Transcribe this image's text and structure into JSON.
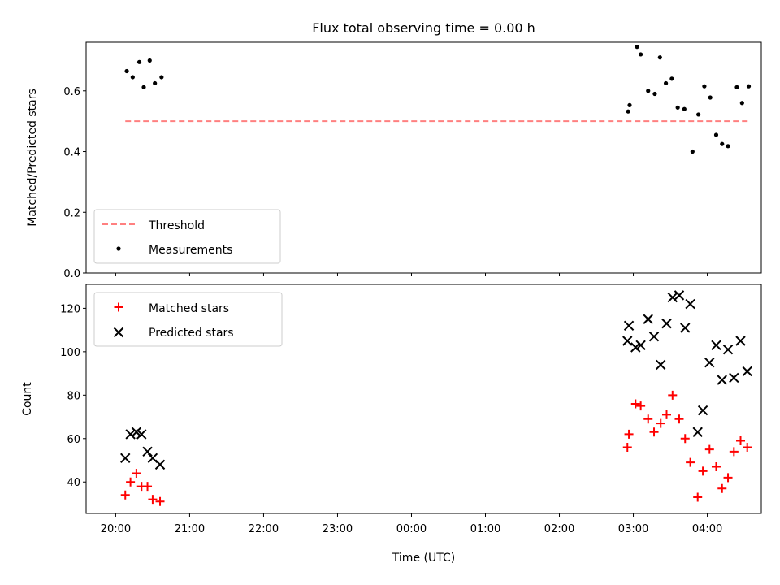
{
  "title": "Flux total observing time = 0.00 h",
  "chart_data": [
    {
      "type": "scatter",
      "ylabel": "Matched/Predicted stars",
      "xlabel": "",
      "ylim": [
        0,
        0.76
      ],
      "yticks": [
        0.0,
        0.2,
        0.4,
        0.6
      ],
      "ytick_labels": [
        "0.0",
        "0.2",
        "0.4",
        "0.6"
      ],
      "xlim": [
        19.6,
        28.73
      ],
      "grid": false,
      "legend_position": "lower-left",
      "threshold": {
        "name": "Threshold",
        "value": 0.5,
        "x_range": [
          20.13,
          28.57
        ],
        "color": "#ff8080"
      },
      "series": [
        {
          "name": "Measurements",
          "color": "#000000",
          "marker": "dot",
          "x": [
            20.15,
            20.23,
            20.32,
            20.38,
            20.46,
            20.53,
            20.62,
            26.93,
            26.95,
            27.05,
            27.1,
            27.2,
            27.29,
            27.36,
            27.44,
            27.52,
            27.6,
            27.69,
            27.8,
            27.88,
            27.96,
            28.04,
            28.12,
            28.2,
            28.28,
            28.4,
            28.47,
            28.56
          ],
          "y": [
            0.665,
            0.645,
            0.695,
            0.612,
            0.7,
            0.625,
            0.645,
            0.532,
            0.553,
            0.745,
            0.72,
            0.6,
            0.59,
            0.71,
            0.625,
            0.64,
            0.545,
            0.54,
            0.4,
            0.522,
            0.615,
            0.578,
            0.455,
            0.425,
            0.418,
            0.612,
            0.56,
            0.615
          ]
        }
      ]
    },
    {
      "type": "scatter",
      "ylabel": "Count",
      "xlabel": "Time (UTC)",
      "ylim": [
        25.5,
        131
      ],
      "yticks": [
        40,
        60,
        80,
        100,
        120
      ],
      "ytick_labels": [
        "40",
        "60",
        "80",
        "100",
        "120"
      ],
      "xlim": [
        19.6,
        28.73
      ],
      "xticks": [
        20,
        21,
        22,
        23,
        24,
        25,
        26,
        27,
        28
      ],
      "xtick_labels": [
        "20:00",
        "21:00",
        "22:00",
        "23:00",
        "00:00",
        "01:00",
        "02:00",
        "03:00",
        "04:00"
      ],
      "grid": false,
      "legend_position": "upper-left",
      "series": [
        {
          "name": "Matched stars",
          "color": "#ff0000",
          "marker": "plus",
          "x": [
            20.13,
            20.2,
            20.28,
            20.35,
            20.43,
            20.5,
            20.6,
            26.92,
            26.94,
            27.03,
            27.1,
            27.2,
            27.28,
            27.37,
            27.45,
            27.53,
            27.62,
            27.7,
            27.77,
            27.87,
            27.94,
            28.03,
            28.12,
            28.2,
            28.28,
            28.36,
            28.45,
            28.54
          ],
          "y": [
            34,
            40,
            44,
            38,
            38,
            32,
            31,
            56,
            62,
            76,
            75,
            69,
            63,
            67,
            71,
            80,
            69,
            60,
            49,
            33,
            45,
            55,
            47,
            37,
            42,
            54,
            59,
            56
          ]
        },
        {
          "name": "Predicted stars",
          "color": "#000000",
          "marker": "x",
          "x": [
            20.13,
            20.2,
            20.28,
            20.35,
            20.43,
            20.5,
            20.6,
            26.92,
            26.94,
            27.03,
            27.1,
            27.2,
            27.28,
            27.37,
            27.45,
            27.53,
            27.62,
            27.7,
            27.77,
            27.87,
            27.94,
            28.03,
            28.12,
            28.2,
            28.28,
            28.36,
            28.45,
            28.54
          ],
          "y": [
            51,
            62,
            63,
            62,
            54,
            51,
            48,
            105,
            112,
            102,
            103,
            115,
            107,
            94,
            113,
            125,
            126,
            111,
            122,
            63,
            73,
            95,
            103,
            87,
            101,
            88,
            105,
            91
          ]
        }
      ]
    }
  ]
}
